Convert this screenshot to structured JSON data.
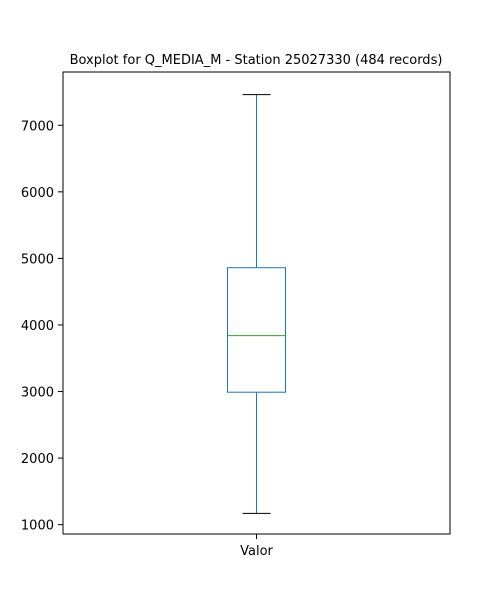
{
  "chart_data": {
    "type": "boxplot",
    "title": "Boxplot for Q_MEDIA_M - Station 25027330 (484 records)",
    "xlabel": "",
    "ylabel": "",
    "categories": [
      "Valor"
    ],
    "ylim": [
      860,
      7800
    ],
    "yticks": [
      1000,
      2000,
      3000,
      4000,
      5000,
      6000,
      7000
    ],
    "ytick_labels": [
      "1000",
      "2000",
      "3000",
      "4000",
      "5000",
      "6000",
      "7000"
    ],
    "grid": false,
    "series": [
      {
        "category": "Valor",
        "whisker_low": 1170,
        "q1": 2990,
        "median": 3840,
        "q3": 4860,
        "whisker_high": 7460
      }
    ],
    "colors": {
      "box": "#1f77b4",
      "median": "#2ca02c",
      "cap": "#000000",
      "axes": "#000000"
    }
  }
}
